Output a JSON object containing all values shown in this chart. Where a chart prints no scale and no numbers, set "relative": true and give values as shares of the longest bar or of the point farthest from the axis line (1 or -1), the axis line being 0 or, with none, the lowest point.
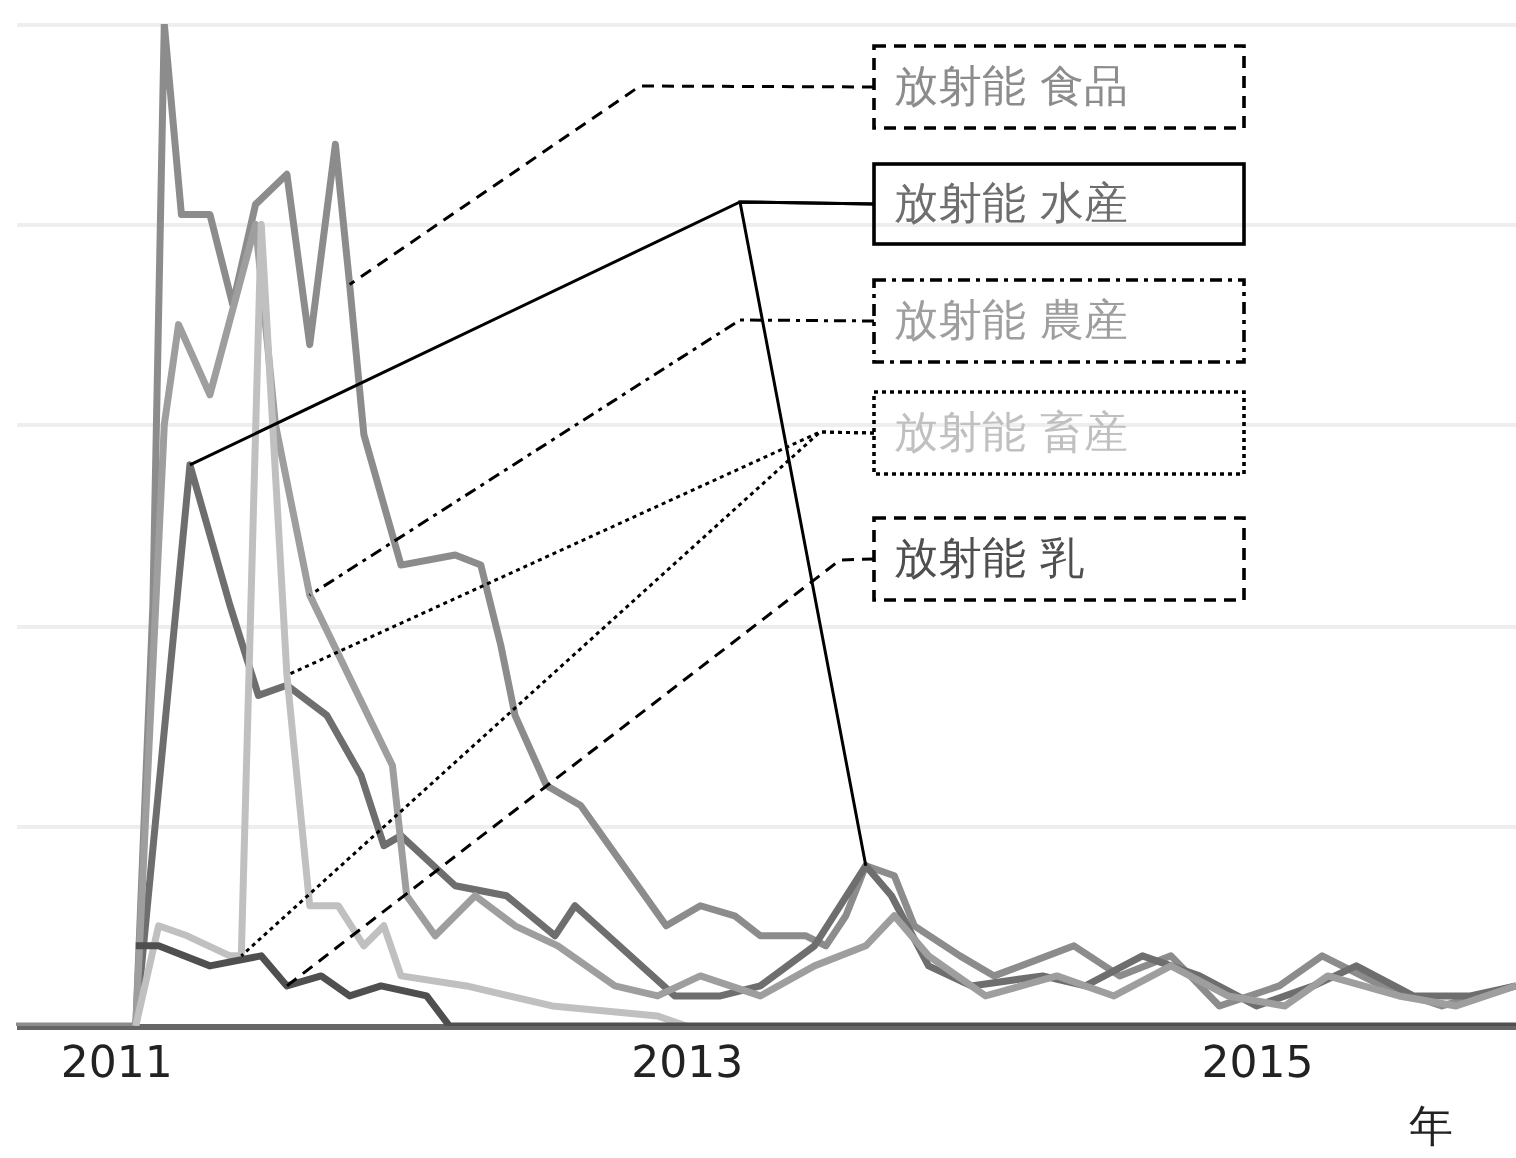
{
  "chart_data": {
    "type": "line",
    "relative": true,
    "xlabel": "年",
    "xlim": [
      2010.65,
      2015.91
    ],
    "xticks": [
      2011,
      2013,
      2015
    ],
    "grid": "y",
    "marker": "none",
    "line_style": "solid",
    "series": [
      {
        "name": "放射能 食品",
        "color": "#8c8c8c",
        "x": [
          2010.65,
          2011.07,
          2011.13,
          2011.17,
          2011.23,
          2011.33,
          2011.41,
          2011.49,
          2011.6,
          2011.68,
          2011.77,
          2011.82,
          2011.87,
          2012.0,
          2012.19,
          2012.28,
          2012.35,
          2012.4,
          2012.51,
          2012.63,
          2012.93,
          2013.05,
          2013.17,
          2013.26,
          2013.42,
          2013.49,
          2013.56,
          2013.63,
          2013.73,
          2013.8,
          2013.96,
          2014.08,
          2014.36,
          2014.52,
          2014.7,
          2014.87,
          2015.08,
          2015.23,
          2015.44,
          2015.65,
          2015.91
        ],
        "values": [
          0,
          0,
          0.42,
          1.0,
          0.81,
          0.81,
          0.72,
          0.82,
          0.85,
          0.68,
          0.88,
          0.74,
          0.59,
          0.46,
          0.47,
          0.46,
          0.38,
          0.31,
          0.24,
          0.22,
          0.1,
          0.12,
          0.11,
          0.09,
          0.09,
          0.08,
          0.11,
          0.16,
          0.15,
          0.1,
          0.07,
          0.05,
          0.08,
          0.05,
          0.07,
          0.02,
          0.04,
          0.07,
          0.04,
          0.02,
          0.04
        ]
      },
      {
        "name": "放射能 水産",
        "color": "#6e6e6e",
        "x": [
          2011.07,
          2011.26,
          2011.4,
          2011.5,
          2011.6,
          2011.74,
          2011.86,
          2011.94,
          2012.0,
          2012.19,
          2012.37,
          2012.54,
          2012.61,
          2012.96,
          2013.12,
          2013.26,
          2013.45,
          2013.63,
          2013.72,
          2013.85,
          2014.0,
          2014.25,
          2014.4,
          2014.6,
          2014.8,
          2015.0,
          2015.2,
          2015.35,
          2015.55,
          2015.75,
          2015.91
        ],
        "values": [
          0,
          0.56,
          0.42,
          0.33,
          0.34,
          0.31,
          0.25,
          0.18,
          0.19,
          0.14,
          0.13,
          0.09,
          0.12,
          0.03,
          0.03,
          0.04,
          0.08,
          0.16,
          0.13,
          0.06,
          0.04,
          0.05,
          0.04,
          0.07,
          0.05,
          0.02,
          0.04,
          0.06,
          0.03,
          0.03,
          0.04
        ]
      },
      {
        "name": "放射能 農産",
        "color": "#9e9e9e",
        "x": [
          2011.07,
          2011.17,
          2011.22,
          2011.33,
          2011.49,
          2011.56,
          2011.68,
          2011.85,
          2011.97,
          2012.02,
          2012.12,
          2012.26,
          2012.4,
          2012.55,
          2012.75,
          2012.9,
          2013.05,
          2013.26,
          2013.45,
          2013.63,
          2013.73,
          2013.85,
          2014.05,
          2014.3,
          2014.5,
          2014.7,
          2014.9,
          2015.1,
          2015.25,
          2015.5,
          2015.7,
          2015.91
        ],
        "values": [
          0,
          0.6,
          0.7,
          0.63,
          0.8,
          0.6,
          0.43,
          0.33,
          0.26,
          0.13,
          0.09,
          0.13,
          0.1,
          0.08,
          0.04,
          0.03,
          0.05,
          0.03,
          0.06,
          0.08,
          0.11,
          0.07,
          0.03,
          0.05,
          0.03,
          0.06,
          0.03,
          0.02,
          0.05,
          0.03,
          0.02,
          0.04
        ]
      },
      {
        "name": "放射能 畜産",
        "color": "#c0c0c0",
        "x": [
          2011.07,
          2011.15,
          2011.25,
          2011.4,
          2011.44,
          2011.51,
          2011.6,
          2011.68,
          2011.78,
          2011.87,
          2011.94,
          2012.0,
          2012.23,
          2012.53,
          2012.9,
          2013.0
        ],
        "values": [
          0,
          0.1,
          0.09,
          0.07,
          0.07,
          0.8,
          0.35,
          0.12,
          0.12,
          0.08,
          0.1,
          0.05,
          0.04,
          0.02,
          0.01,
          0
        ]
      },
      {
        "name": "放射能 乳",
        "color": "#4f4f4f",
        "x": [
          2011.07,
          2011.15,
          2011.33,
          2011.51,
          2011.6,
          2011.72,
          2011.82,
          2011.93,
          2012.09,
          2012.17,
          2015.91
        ],
        "values": [
          0.08,
          0.08,
          0.06,
          0.07,
          0.04,
          0.05,
          0.03,
          0.04,
          0.03,
          0,
          0
        ]
      }
    ]
  }
}
